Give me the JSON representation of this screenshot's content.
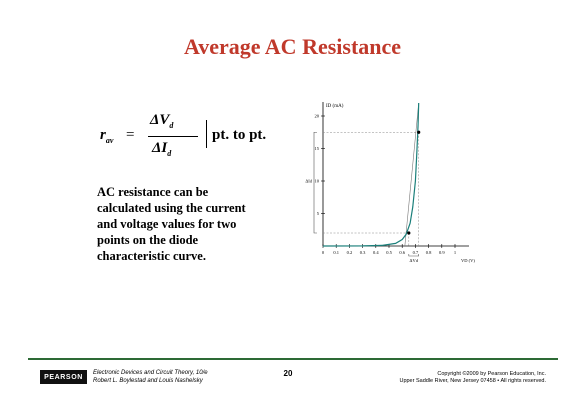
{
  "slide": {
    "title": "Average AC Resistance",
    "formula": {
      "lhs": "r",
      "lhs_sub": "av",
      "equals": "=",
      "num": "ΔV",
      "num_sub": "d",
      "den": "ΔI",
      "den_sub": "d",
      "suffix": "pt. to pt."
    },
    "description": [
      "AC resistance can be",
      "calculated using the current",
      "and voltage values for two",
      "points on the diode",
      "characteristic curve."
    ]
  },
  "chart_data": {
    "type": "line",
    "ylabel": "I_D (mA)",
    "xlabel": "V_D (V)",
    "y_ticks": [
      "5",
      "10",
      "15",
      "20"
    ],
    "x_ticks": [
      "0",
      "0.1",
      "0.2",
      "0.3",
      "0.4",
      "0.5",
      "0.6",
      "0.7",
      "0.8",
      "0.9",
      "1"
    ],
    "xlim": [
      0,
      1
    ],
    "ylim": [
      0,
      22
    ],
    "delta_labels": {
      "current": "ΔI_d",
      "voltage": "ΔV_d"
    },
    "curve": {
      "x": [
        0,
        0.3,
        0.45,
        0.55,
        0.6,
        0.63,
        0.66,
        0.68,
        0.7,
        0.71,
        0.72,
        0.725
      ],
      "y": [
        0,
        0.02,
        0.1,
        0.4,
        1.0,
        1.8,
        3.5,
        6,
        10,
        14,
        18.5,
        22
      ]
    },
    "tangent": {
      "x": [
        0.62,
        0.725
      ],
      "y": [
        0,
        22
      ]
    },
    "points": [
      {
        "x": 0.65,
        "y": 2
      },
      {
        "x": 0.725,
        "y": 17.5
      }
    ],
    "colors": {
      "curve": "#1a7f7a",
      "axis": "#000000"
    }
  },
  "footer": {
    "logo": "PEARSON",
    "book": "Electronic Devices and Circuit Theory, 10/e",
    "authors": "Robert L. Boylestad and Louis Nashelsky",
    "page": "20",
    "copyright": "Copyright ©2009 by Pearson Education, Inc.",
    "address": "Upper Saddle River, New Jersey 07458 • All rights reserved."
  }
}
